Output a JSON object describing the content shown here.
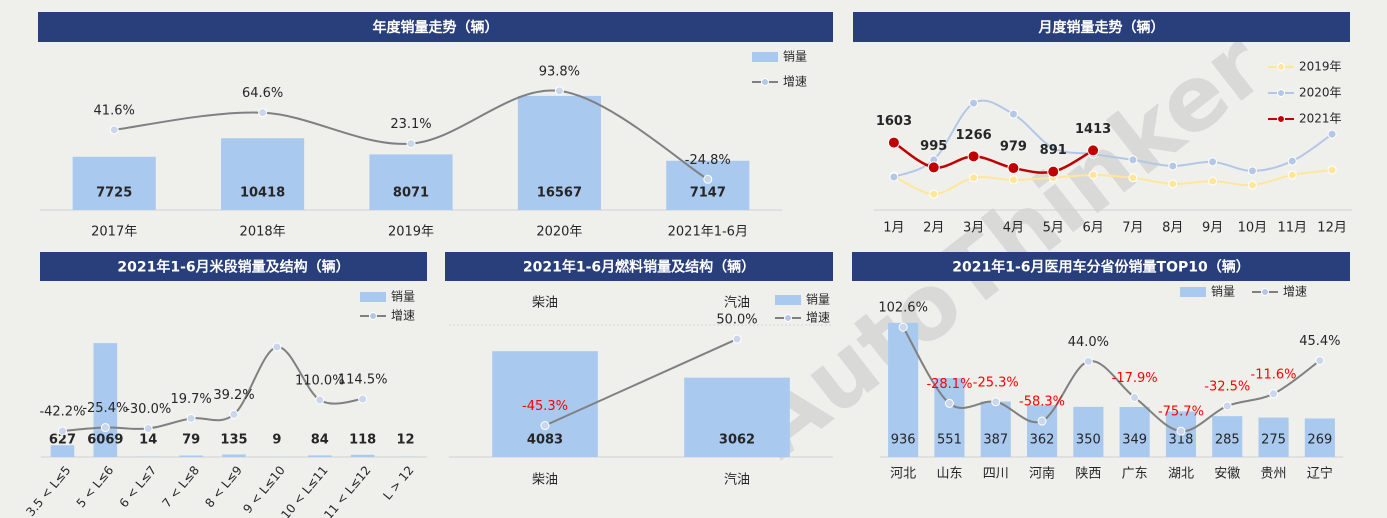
{
  "watermark": "AutoThinker",
  "chart_data": [
    {
      "type": "bar_line",
      "title": "年度销量走势（辆）",
      "categories": [
        "2017年",
        "2018年",
        "2019年",
        "2020年",
        "2021年1-6月"
      ],
      "ylim": [
        0,
        22500
      ],
      "y2lim": [
        -66,
        142
      ],
      "series": [
        {
          "name": "销量",
          "type": "bar",
          "color": "#a9c9ee",
          "values": [
            7725,
            10418,
            8071,
            16567,
            7147
          ]
        },
        {
          "name": "增速",
          "type": "line",
          "axis": "y2",
          "color": "#808080",
          "values": [
            41.6,
            64.6,
            23.1,
            93.8,
            -24.8
          ],
          "value_labels": [
            "41.6%",
            "64.6%",
            "23.1%",
            "93.8%",
            "-24.8%"
          ]
        }
      ]
    },
    {
      "type": "line",
      "title": "月度销量走势（辆）",
      "categories": [
        "1月",
        "2月",
        "3月",
        "4月",
        "5月",
        "6月",
        "7月",
        "8月",
        "9月",
        "10月",
        "11月",
        "12月"
      ],
      "ylim": [
        0,
        3750
      ],
      "series": [
        {
          "name": "2019年",
          "color": "#ffe699",
          "values": [
            780,
            340,
            740,
            690,
            740,
            810,
            740,
            590,
            660,
            560,
            810,
            930
          ]
        },
        {
          "name": "2020年",
          "color": "#b4c7e7",
          "values": [
            760,
            1180,
            2570,
            2300,
            1470,
            1320,
            1180,
            1030,
            1130,
            910,
            1150,
            1810
          ]
        },
        {
          "name": "2021年",
          "color": "#c00000",
          "show_labels": true,
          "values": [
            1603,
            995,
            1266,
            979,
            891,
            1413,
            null,
            null,
            null,
            null,
            null,
            null
          ]
        }
      ]
    },
    {
      "type": "bar_line",
      "title": "2021年1-6月米段销量及结构（辆）",
      "categories": [
        "3.5 < L≤5",
        "5 < L≤6",
        "6 < L≤7",
        "7 < L≤8",
        "8 < L≤9",
        "9 < L≤10",
        "10 < L≤11",
        "11 < L≤12",
        "L > 12"
      ],
      "ylim": [
        0,
        8900
      ],
      "y2lim": [
        -170,
        650
      ],
      "series": [
        {
          "name": "销量",
          "type": "bar",
          "color": "#a9c9ee",
          "values": [
            627,
            6069,
            14,
            79,
            135,
            9,
            84,
            118,
            12
          ]
        },
        {
          "name": "增速",
          "type": "line",
          "axis": "y2",
          "color": "#808080",
          "values": [
            -42.2,
            -25.4,
            -30.0,
            19.7,
            39.2,
            370,
            110.0,
            114.5,
            null
          ],
          "value_labels": [
            "-42.2%",
            "-25.4%",
            "-30.0%",
            "19.7%",
            "39.2%",
            null,
            "110.0%",
            "114.5%",
            null
          ]
        }
      ]
    },
    {
      "type": "bar_line",
      "title": "2021年1-6月燃料销量及结构（辆）",
      "categories": [
        "柴油",
        "汽油"
      ],
      "ylim": [
        0,
        4900
      ],
      "y2lim": [
        -80,
        60
      ],
      "series": [
        {
          "name": "销量",
          "type": "bar",
          "color": "#a9c9ee",
          "values": [
            4083,
            3062
          ]
        },
        {
          "name": "增速",
          "type": "line",
          "axis": "y2",
          "color": "#808080",
          "negative_label_color": "#ff0000",
          "values": [
            -45.3,
            50.0
          ],
          "value_labels": [
            "-45.3%",
            "50.0%"
          ]
        }
      ]
    },
    {
      "type": "bar_line",
      "title": "2021年1-6月医用车分省份销量TOP10（辆）",
      "categories": [
        "河北",
        "山东",
        "四川",
        "河南",
        "陕西",
        "广东",
        "湖北",
        "安徽",
        "贵州",
        "辽宁"
      ],
      "ylim": [
        0,
        1200
      ],
      "y2lim": [
        -120,
        175
      ],
      "series": [
        {
          "name": "销量",
          "type": "bar",
          "color": "#a9c9ee",
          "values": [
            936,
            551,
            387,
            362,
            350,
            349,
            318,
            285,
            275,
            269
          ]
        },
        {
          "name": "增速",
          "type": "line",
          "axis": "y2",
          "color": "#808080",
          "negative_label_color": "#ff0000",
          "values": [
            102.6,
            -28.1,
            -25.3,
            -58.3,
            44.0,
            -17.9,
            -75.7,
            -32.5,
            -11.6,
            45.4
          ],
          "value_labels": [
            "102.6%",
            "-28.1%",
            "-25.3%",
            "-58.3%",
            "44.0%",
            "-17.9%",
            "-75.7%",
            "-32.5%",
            "-11.6%",
            "45.4%"
          ]
        }
      ]
    }
  ]
}
